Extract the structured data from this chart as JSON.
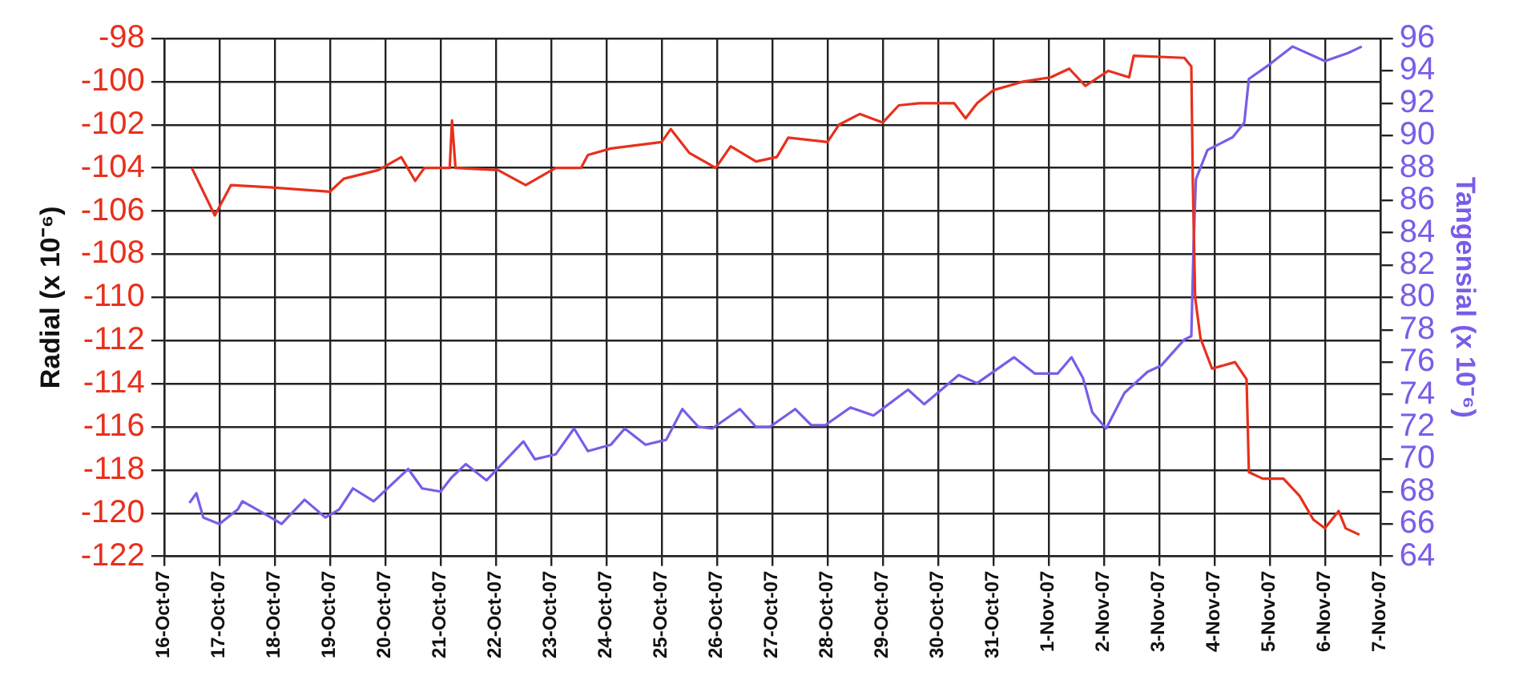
{
  "chart_data": {
    "type": "line",
    "ylabel": "Radial (x 10⁻⁶)",
    "y2label": "Tangensial (x 10⁻⁶)",
    "xlim": [
      "--10-16",
      "--11-07"
    ],
    "xticks": [
      {
        "value": "--10-16",
        "label": "16-Oct-07"
      },
      {
        "value": "--10-17",
        "label": "17-Oct-07"
      },
      {
        "value": "--10-18",
        "label": "18-Oct-07"
      },
      {
        "value": "--10-19",
        "label": "19-Oct-07"
      },
      {
        "value": "--10-20",
        "label": "20-Oct-07"
      },
      {
        "value": "--10-21",
        "label": "21-Oct-07"
      },
      {
        "value": "--10-22",
        "label": "22-Oct-07"
      },
      {
        "value": "--10-23",
        "label": "23-Oct-07"
      },
      {
        "value": "--10-24",
        "label": "24-Oct-07"
      },
      {
        "value": "--10-25",
        "label": "25-Oct-07"
      },
      {
        "value": "--10-26",
        "label": "26-Oct-07"
      },
      {
        "value": "--10-27",
        "label": "27-Oct-07"
      },
      {
        "value": "--10-28",
        "label": "28-Oct-07"
      },
      {
        "value": "--10-29",
        "label": "29-Oct-07"
      },
      {
        "value": "--10-30",
        "label": "30-Oct-07"
      },
      {
        "value": "--10-31",
        "label": "31-Oct-07"
      },
      {
        "value": "--11-01",
        "label": "1-Nov-07"
      },
      {
        "value": "--11-02",
        "label": "2-Nov-07"
      },
      {
        "value": "--11-03",
        "label": "3-Nov-07"
      },
      {
        "value": "--11-04",
        "label": "4-Nov-07"
      },
      {
        "value": "--11-05",
        "label": "5-Nov-07"
      },
      {
        "value": "--11-06",
        "label": "6-Nov-07"
      },
      {
        "value": "--11-07",
        "label": "7-Nov-07"
      }
    ],
    "ylim": [
      -122,
      -98
    ],
    "yticks": [
      -122,
      -120,
      -118,
      -116,
      -114,
      -112,
      -110,
      -108,
      -106,
      -104,
      -102,
      -100,
      -98
    ],
    "y2lim": [
      64,
      96
    ],
    "y2ticks": [
      64,
      66,
      68,
      70,
      72,
      74,
      76,
      78,
      80,
      82,
      84,
      86,
      88,
      90,
      92,
      94,
      96
    ],
    "grid": true,
    "legend": false,
    "marker": "none",
    "series": [
      {
        "color": "#e8301c",
        "x": [
          "--10-16T12:00",
          "--10-16T22:00",
          "--10-17T05:00",
          "--10-17T22:00",
          "--10-19T00:00",
          "--10-19T06:00",
          "--10-19T21:00",
          "--10-20T07:00",
          "--10-20T13:00",
          "--10-20T17:00",
          "--10-21T04:00",
          "--10-21T05:00",
          "--10-21T06:30",
          "--10-22T01:00",
          "--10-22T13:00",
          "--10-23T02:00",
          "--10-23T13:00",
          "--10-23T16:00",
          "--10-24T02:00",
          "--10-25T00:00",
          "--10-25T04:00",
          "--10-25T12:00",
          "--10-25T23:30",
          "--10-26T06:00",
          "--10-26T17:00",
          "--10-27T02:00",
          "--10-27T07:00",
          "--10-28T00:00",
          "--10-28T05:00",
          "--10-28T14:00",
          "--10-29T00:00",
          "--10-29T07:00",
          "--10-29T16:00",
          "--10-30T07:00",
          "--10-30T12:00",
          "--10-30T17:00",
          "--10-31T00:00",
          "--10-31T13:00",
          "--11-01T01:00",
          "--11-01T09:00",
          "--11-01T16:00",
          "--11-02T02:00",
          "--11-02T11:00",
          "--11-02T13:00",
          "--11-03T11:00",
          "--11-03T14:00",
          "--11-03T14:40",
          "--11-03T15:40",
          "--11-03T18:00",
          "--11-03T23:00",
          "--11-04T09:00",
          "--11-04T14:00",
          "--11-04T15:00",
          "--11-04T21:00",
          "--11-05T06:00",
          "--11-05T13:00",
          "--11-05T19:00",
          "--11-06T00:00",
          "--11-06T06:00",
          "--11-06T09:00",
          "--11-06T15:00"
        ],
        "values": [
          -104,
          -106.2,
          -104.8,
          -104.9,
          -105.1,
          -104.5,
          -104.1,
          -103.5,
          -104.6,
          -104,
          -104,
          -101.8,
          -104,
          -104.1,
          -104.8,
          -104,
          -104,
          -103.4,
          -103.1,
          -102.8,
          -102.2,
          -103.3,
          -104,
          -103,
          -103.7,
          -103.5,
          -102.6,
          -102.8,
          -102,
          -101.5,
          -101.9,
          -101.1,
          -101,
          -101,
          -101.7,
          -101,
          -100.4,
          -100,
          -99.8,
          -99.4,
          -100.2,
          -99.5,
          -99.8,
          -98.8,
          -98.9,
          -99.3,
          -104.7,
          -110,
          -111.9,
          -113.3,
          -113,
          -113.8,
          -118.1,
          -118.4,
          -118.4,
          -119.2,
          -120.3,
          -120.7,
          -119.9,
          -120.7,
          -121
        ]
      },
      {
        "color": "#7b5ce8",
        "axis": "y2",
        "x": [
          "--10-16T11:00",
          "--10-16T14:00",
          "--10-16T17:00",
          "--10-17T00:00",
          "--10-17T08:00",
          "--10-17T10:00",
          "--10-17T20:00",
          "--10-18T03:00",
          "--10-18T13:00",
          "--10-18T22:00",
          "--10-19T04:00",
          "--10-19T10:00",
          "--10-19T19:00",
          "--10-20T10:00",
          "--10-20T16:00",
          "--10-21T00:00",
          "--10-21T05:00",
          "--10-21T11:00",
          "--10-21T20:00",
          "--10-22T12:00",
          "--10-22T17:00",
          "--10-23T02:00",
          "--10-23T10:00",
          "--10-23T16:00",
          "--10-24T02:00",
          "--10-24T08:00",
          "--10-24T17:00",
          "--10-25T02:00",
          "--10-25T09:00",
          "--10-25T16:00",
          "--10-25T22:00",
          "--10-26T10:00",
          "--10-26T17:00",
          "--10-26T23:00",
          "--10-27T10:00",
          "--10-27T17:00",
          "--10-27T23:00",
          "--10-28T10:00",
          "--10-28T20:00",
          "--10-29T11:00",
          "--10-29T18:00",
          "--10-30T09:00",
          "--10-30T17:00",
          "--10-31T09:00",
          "--10-31T18:00",
          "--11-01T04:00",
          "--11-01T10:00",
          "--11-01T15:00",
          "--11-01T19:00",
          "--11-02T01:00",
          "--11-02T09:00",
          "--11-02T19:00",
          "--11-03T01:00",
          "--11-03T11:00",
          "--11-03T14:00",
          "--11-03T15:00",
          "--11-03T16:00",
          "--11-03T21:00",
          "--11-04T08:00",
          "--11-04T13:00",
          "--11-04T15:00",
          "--11-05T00:00",
          "--11-05T10:00",
          "--11-06T00:00",
          "--11-06T10:00",
          "--11-06T16:00"
        ],
        "values": [
          67.3,
          67.9,
          66.4,
          66,
          66.9,
          67.4,
          66.6,
          66,
          67.5,
          66.4,
          66.9,
          68.2,
          67.4,
          69.4,
          68.2,
          68,
          68.9,
          69.7,
          68.7,
          71.1,
          70,
          70.3,
          71.9,
          70.5,
          70.9,
          71.9,
          70.9,
          71.2,
          73.1,
          72,
          71.9,
          73.1,
          72,
          72,
          73.1,
          72.1,
          72.1,
          73.2,
          72.7,
          74.3,
          73.4,
          75.2,
          74.7,
          76.3,
          75.3,
          75.3,
          76.3,
          75,
          72.9,
          71.9,
          74.1,
          75.4,
          75.8,
          77.4,
          77.6,
          83.3,
          87.3,
          89.1,
          89.9,
          90.8,
          93.5,
          94.4,
          95.5,
          94.6,
          95.1,
          95.5
        ]
      }
    ]
  }
}
